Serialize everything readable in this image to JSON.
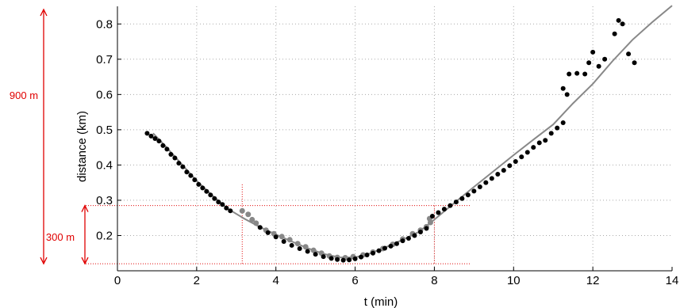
{
  "chart_data": {
    "type": "scatter",
    "xlabel": "t (min)",
    "ylabel": "distance (km)",
    "xlim": [
      0,
      14
    ],
    "ylim": [
      0.1,
      0.85
    ],
    "xticks": [
      0,
      2,
      4,
      6,
      8,
      10,
      12,
      14
    ],
    "xtick_labels": [
      "0",
      "2",
      "4",
      "6",
      "8",
      "10",
      "12",
      "14"
    ],
    "yticks": [
      0.2,
      0.3,
      0.4,
      0.5,
      0.6,
      0.7,
      0.8
    ],
    "ytick_labels": [
      "0.2",
      "0.3",
      "0.4",
      "0.5",
      "0.6",
      "0.7",
      "0.8"
    ],
    "grid": true,
    "colors": {
      "black_points": "#000000",
      "gray_points": "#888888",
      "model_line": "#888888",
      "annotation": "#e00000",
      "grid": "#aaaaaa"
    },
    "series": [
      {
        "kind": "points",
        "color": "black",
        "points": [
          [
            0.75,
            0.49
          ],
          [
            0.85,
            0.482
          ],
          [
            0.95,
            0.475
          ],
          [
            1.05,
            0.468
          ],
          [
            1.15,
            0.455
          ],
          [
            1.25,
            0.445
          ],
          [
            1.35,
            0.43
          ],
          [
            1.45,
            0.42
          ],
          [
            1.55,
            0.405
          ],
          [
            1.65,
            0.395
          ],
          [
            1.75,
            0.38
          ],
          [
            1.85,
            0.37
          ],
          [
            1.95,
            0.358
          ],
          [
            2.05,
            0.345
          ],
          [
            2.15,
            0.335
          ],
          [
            2.25,
            0.325
          ],
          [
            2.35,
            0.315
          ],
          [
            2.45,
            0.305
          ],
          [
            2.55,
            0.295
          ],
          [
            2.65,
            0.288
          ],
          [
            2.75,
            0.278
          ],
          [
            2.85,
            0.27
          ],
          [
            3.6,
            0.223
          ],
          [
            3.8,
            0.208
          ],
          [
            4.0,
            0.196
          ],
          [
            4.2,
            0.183
          ],
          [
            4.4,
            0.172
          ],
          [
            4.6,
            0.163
          ],
          [
            4.8,
            0.155
          ],
          [
            5.0,
            0.147
          ],
          [
            5.2,
            0.14
          ],
          [
            5.4,
            0.135
          ],
          [
            5.55,
            0.132
          ],
          [
            5.7,
            0.13
          ],
          [
            5.85,
            0.131
          ],
          [
            6.0,
            0.134
          ],
          [
            6.15,
            0.139
          ],
          [
            6.3,
            0.145
          ],
          [
            6.45,
            0.15
          ],
          [
            6.6,
            0.157
          ],
          [
            6.75,
            0.164
          ],
          [
            6.9,
            0.17
          ],
          [
            7.05,
            0.177
          ],
          [
            7.2,
            0.185
          ],
          [
            7.35,
            0.192
          ],
          [
            7.5,
            0.2
          ],
          [
            7.65,
            0.21
          ],
          [
            7.8,
            0.22
          ],
          [
            7.95,
            0.255
          ],
          [
            8.1,
            0.265
          ],
          [
            8.25,
            0.275
          ],
          [
            8.4,
            0.285
          ],
          [
            8.55,
            0.295
          ],
          [
            8.7,
            0.305
          ],
          [
            8.85,
            0.315
          ],
          [
            9.0,
            0.326
          ],
          [
            9.15,
            0.338
          ],
          [
            9.3,
            0.35
          ],
          [
            9.45,
            0.362
          ],
          [
            9.6,
            0.374
          ],
          [
            9.75,
            0.385
          ],
          [
            9.9,
            0.398
          ],
          [
            10.05,
            0.41
          ],
          [
            10.2,
            0.423
          ],
          [
            10.35,
            0.436
          ],
          [
            10.5,
            0.45
          ],
          [
            10.65,
            0.463
          ],
          [
            10.8,
            0.47
          ],
          [
            10.95,
            0.49
          ],
          [
            11.1,
            0.505
          ],
          [
            11.25,
            0.52
          ],
          [
            11.35,
            0.6
          ],
          [
            11.25,
            0.617
          ],
          [
            11.4,
            0.658
          ],
          [
            11.6,
            0.66
          ],
          [
            11.8,
            0.658
          ],
          [
            11.9,
            0.69
          ],
          [
            12.0,
            0.72
          ],
          [
            12.15,
            0.68
          ],
          [
            12.3,
            0.7
          ],
          [
            12.55,
            0.772
          ],
          [
            12.65,
            0.81
          ],
          [
            12.75,
            0.8
          ],
          [
            12.9,
            0.715
          ],
          [
            13.05,
            0.69
          ]
        ]
      },
      {
        "kind": "points",
        "color": "gray",
        "points": [
          [
            3.15,
            0.27
          ],
          [
            3.3,
            0.26
          ],
          [
            3.4,
            0.245
          ],
          [
            3.5,
            0.235
          ],
          [
            3.75,
            0.215
          ],
          [
            3.95,
            0.205
          ],
          [
            4.15,
            0.197
          ],
          [
            4.35,
            0.188
          ],
          [
            4.55,
            0.177
          ],
          [
            4.75,
            0.168
          ],
          [
            4.95,
            0.158
          ],
          [
            5.15,
            0.15
          ],
          [
            5.35,
            0.142
          ],
          [
            5.55,
            0.138
          ],
          [
            5.75,
            0.137
          ],
          [
            5.95,
            0.14
          ],
          [
            6.2,
            0.145
          ],
          [
            6.45,
            0.153
          ],
          [
            6.7,
            0.163
          ],
          [
            6.95,
            0.175
          ],
          [
            7.2,
            0.19
          ],
          [
            7.45,
            0.205
          ],
          [
            7.65,
            0.215
          ],
          [
            7.8,
            0.225
          ],
          [
            7.9,
            0.237
          ],
          [
            7.88,
            0.248
          ]
        ]
      },
      {
        "kind": "line",
        "color": "gray",
        "points": [
          [
            0.9,
            0.49
          ],
          [
            1.2,
            0.455
          ],
          [
            1.6,
            0.405
          ],
          [
            2.0,
            0.355
          ],
          [
            2.4,
            0.313
          ],
          [
            2.8,
            0.275
          ],
          [
            3.2,
            0.248
          ],
          [
            3.6,
            0.224
          ],
          [
            4.0,
            0.203
          ],
          [
            4.4,
            0.183
          ],
          [
            4.8,
            0.164
          ],
          [
            5.2,
            0.148
          ],
          [
            5.6,
            0.138
          ],
          [
            6.0,
            0.138
          ],
          [
            6.4,
            0.15
          ],
          [
            6.8,
            0.168
          ],
          [
            7.2,
            0.188
          ],
          [
            7.6,
            0.21
          ],
          [
            8.0,
            0.245
          ],
          [
            8.5,
            0.292
          ],
          [
            9.0,
            0.338
          ],
          [
            9.5,
            0.383
          ],
          [
            10.0,
            0.428
          ],
          [
            10.5,
            0.472
          ],
          [
            11.0,
            0.515
          ],
          [
            11.5,
            0.575
          ],
          [
            12.0,
            0.63
          ],
          [
            12.5,
            0.695
          ],
          [
            13.0,
            0.755
          ],
          [
            13.5,
            0.805
          ],
          [
            14.0,
            0.852
          ]
        ]
      }
    ],
    "annotations": [
      {
        "label": "900 m",
        "y_from": 0.12,
        "y_to": 0.85
      },
      {
        "label": "300 m",
        "y_from": 0.12,
        "y_to": 0.285
      }
    ],
    "reference_lines": [
      {
        "x": 3.15,
        "y_from": 0.12,
        "y_to": 0.345
      },
      {
        "x": 8.0,
        "y_from": 0.12,
        "y_to": 0.285
      },
      {
        "y": 0.285,
        "x_from": -0.8,
        "x_to": 8.9
      },
      {
        "y": 0.12,
        "x_from": -0.8,
        "x_to": 8.9
      }
    ]
  }
}
